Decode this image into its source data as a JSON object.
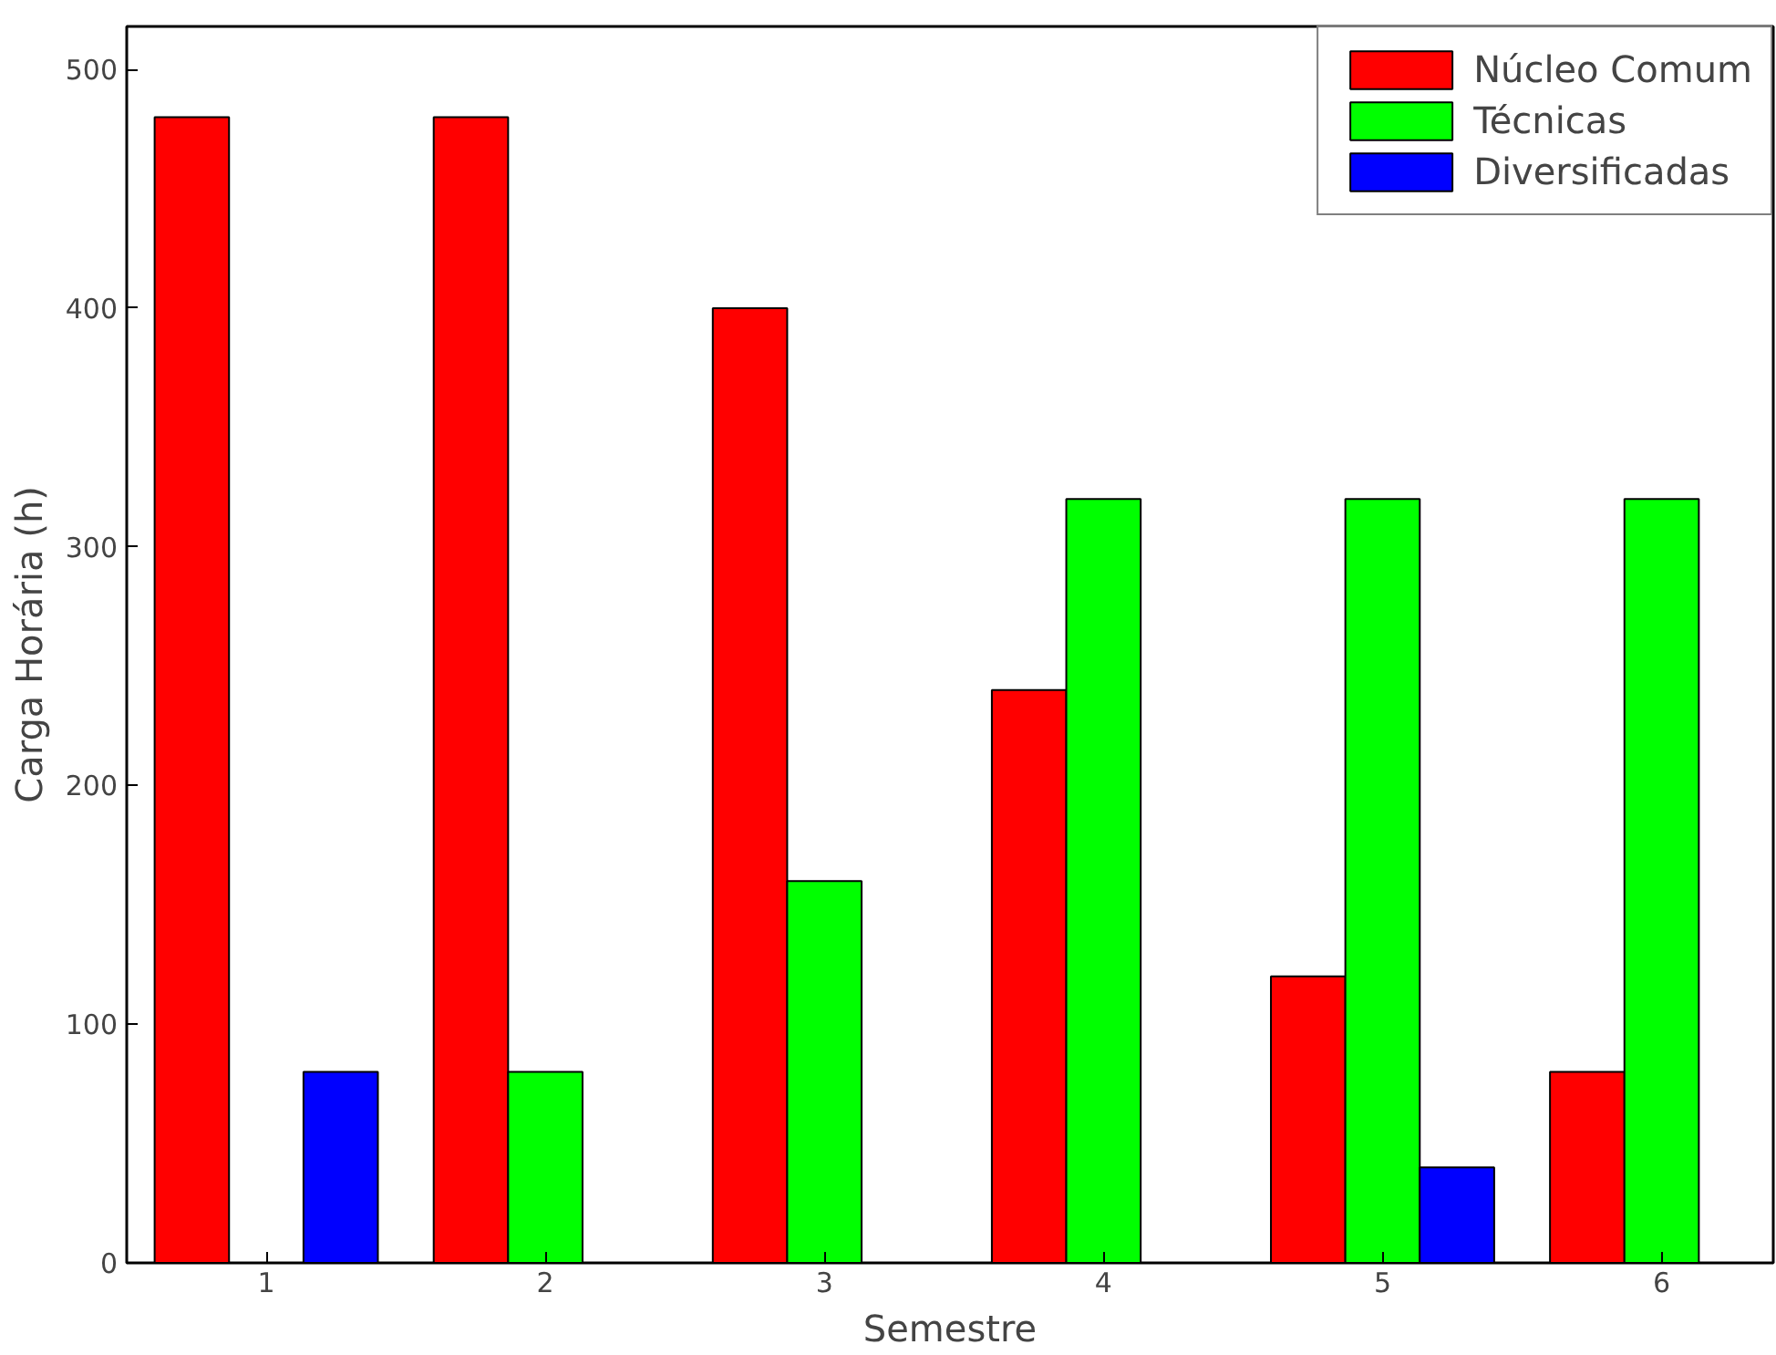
{
  "chart_data": {
    "type": "bar",
    "xlabel": "Semestre",
    "ylabel": "Carga Horária (h)",
    "x": [
      1,
      2,
      3,
      4,
      5,
      6
    ],
    "series": [
      {
        "name": "Núcleo Comum",
        "color": "#ff0000",
        "values": [
          480,
          480,
          400,
          240,
          120,
          80
        ]
      },
      {
        "name": "Técnicas",
        "color": "#00ff00",
        "values": [
          null,
          80,
          160,
          320,
          320,
          320
        ]
      },
      {
        "name": "Diversificadas",
        "color": "#0000ff",
        "values": [
          80,
          null,
          null,
          null,
          40,
          null
        ]
      }
    ],
    "xlim": [
      0.5,
      6.4
    ],
    "xticks": [
      1,
      2,
      3,
      4,
      5,
      6
    ],
    "ylim": [
      0,
      518
    ],
    "yticks": [
      0,
      100,
      200,
      300,
      400,
      500
    ],
    "grid": false,
    "legend": "top right"
  }
}
